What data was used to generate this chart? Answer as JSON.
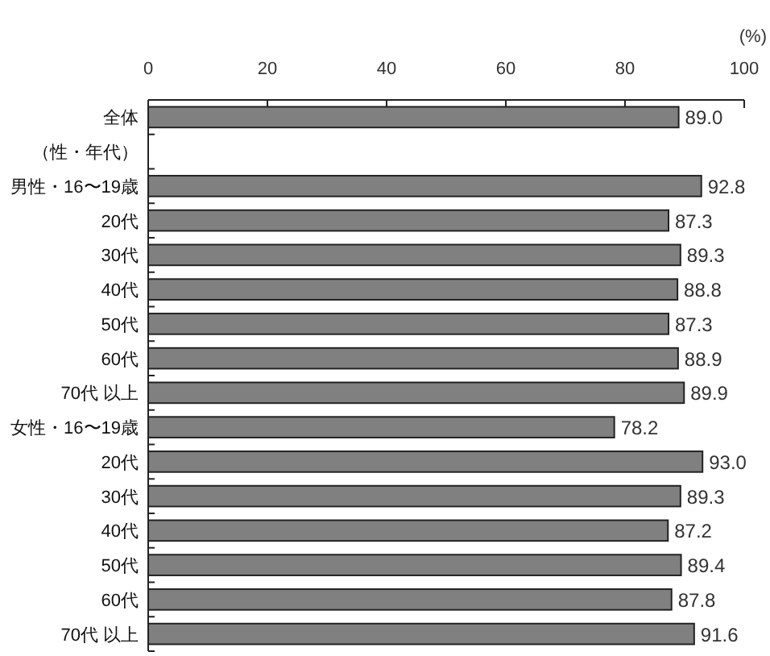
{
  "chart_data": {
    "type": "bar",
    "orientation": "horizontal",
    "xlabel": "(%)",
    "categories": [
      "全体",
      "（性・年代）",
      "男性・16〜19歳",
      "20代",
      "30代",
      "40代",
      "50代",
      "60代",
      "70代 以上",
      "女性・16〜19歳",
      "20代",
      "30代",
      "40代",
      "50代",
      "60代",
      "70代 以上"
    ],
    "values": [
      89.0,
      null,
      92.8,
      87.3,
      89.3,
      88.8,
      87.3,
      88.9,
      89.9,
      78.2,
      93.0,
      89.3,
      87.2,
      89.4,
      87.8,
      91.6
    ],
    "color": "#808080",
    "xlim": [
      0,
      100
    ],
    "xticks": [
      0,
      20,
      40,
      60,
      80,
      100
    ],
    "value_labels": [
      "89.0",
      null,
      "92.8",
      "87.3",
      "89.3",
      "88.8",
      "87.3",
      "88.9",
      "89.9",
      "78.2",
      "93.0",
      "89.3",
      "87.2",
      "89.4",
      "87.8",
      "91.6"
    ]
  }
}
